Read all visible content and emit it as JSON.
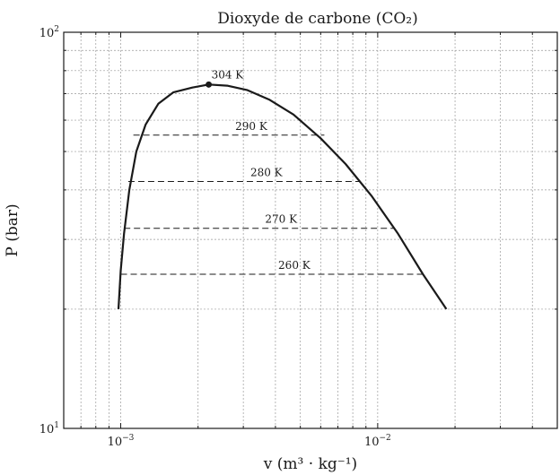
{
  "chart_data": {
    "type": "line",
    "title": "Dioxyde de carbone (CO₂)",
    "xlabel": "v (m³ · kg⁻¹)",
    "ylabel": "P (bar)",
    "xscale": "log",
    "yscale": "log",
    "xlim": [
      0.0006,
      0.05
    ],
    "ylim": [
      10,
      100
    ],
    "grid": true,
    "x_ticks": [
      {
        "value": 0.001,
        "base": "10",
        "exp": "−3"
      },
      {
        "value": 0.01,
        "base": "10",
        "exp": "−2"
      }
    ],
    "y_ticks": [
      {
        "value": 10,
        "base": "10",
        "exp": "1"
      },
      {
        "value": 100,
        "base": "10",
        "exp": "2"
      }
    ],
    "saturation_curve": {
      "x": [
        0.00098,
        0.001,
        0.00103,
        0.00108,
        0.00115,
        0.00125,
        0.0014,
        0.0016,
        0.0019,
        0.0022,
        0.0026,
        0.0031,
        0.0038,
        0.0047,
        0.006,
        0.0075,
        0.0095,
        0.012,
        0.015,
        0.0185
      ],
      "y": [
        20.0,
        25.0,
        31.0,
        40.0,
        50.0,
        58.5,
        66.0,
        70.5,
        72.5,
        73.8,
        73.3,
        71.5,
        67.5,
        62.0,
        54.0,
        46.5,
        38.5,
        31.0,
        24.5,
        20.0
      ]
    },
    "critical_point": {
      "x": 0.0022,
      "y": 73.8,
      "label": "304 K"
    },
    "isotherms": [
      {
        "label": "290 K",
        "p": 55.0,
        "x_start": 0.00112,
        "x_end": 0.0062
      },
      {
        "label": "280 K",
        "p": 42.0,
        "x_start": 0.00107,
        "x_end": 0.0085
      },
      {
        "label": "270 K",
        "p": 32.0,
        "x_start": 0.00103,
        "x_end": 0.0115
      },
      {
        "label": "260 K",
        "p": 24.5,
        "x_start": 0.001,
        "x_end": 0.015
      }
    ]
  }
}
